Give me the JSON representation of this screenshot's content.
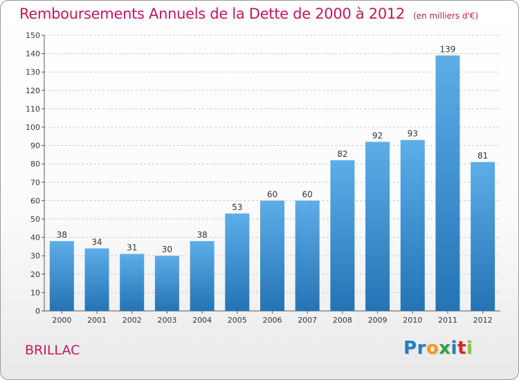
{
  "header": {
    "title": "Remboursements Annuels de la Dette de 2000 à 2012",
    "subtitle": "(en milliers d'€)"
  },
  "footer": {
    "commune": "BRILLAC",
    "brand": "Proxiti",
    "brand_letters": [
      {
        "char": "P",
        "color": "#1f7fc4"
      },
      {
        "char": "r",
        "color": "#1f7fc4"
      },
      {
        "char": "o",
        "color": "#f39c12"
      },
      {
        "char": "x",
        "color": "#2e9e3f"
      },
      {
        "char": "i",
        "color": "#1f7fc4"
      },
      {
        "char": "t",
        "color": "#d62828"
      },
      {
        "char": "i",
        "color": "#8cc63f"
      }
    ]
  },
  "colors": {
    "title": "#c2185b",
    "bar_top": "#5dade8",
    "bar_bottom": "#2474b5",
    "grid": "#c8c8c8",
    "axis_text": "#333333"
  },
  "chart_data": {
    "type": "bar",
    "categories": [
      "2000",
      "2001",
      "2002",
      "2003",
      "2004",
      "2005",
      "2006",
      "2007",
      "2008",
      "2009",
      "2010",
      "2011",
      "2012"
    ],
    "values": [
      38,
      34,
      31,
      30,
      38,
      53,
      60,
      60,
      82,
      92,
      93,
      139,
      81
    ],
    "title": "Remboursements Annuels de la Dette de 2000 à 2012",
    "subtitle": "(en milliers d'€)",
    "ylim": [
      0,
      150
    ],
    "yticks": [
      0,
      10,
      20,
      30,
      40,
      50,
      60,
      70,
      80,
      90,
      100,
      110,
      120,
      130,
      140,
      150
    ],
    "grid": true,
    "data_labels": true
  }
}
